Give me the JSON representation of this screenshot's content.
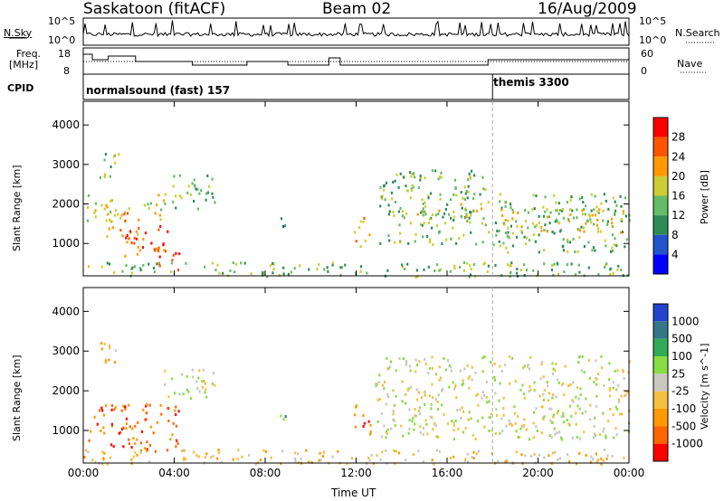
{
  "header": {
    "station": "Saskatoon (fitACF)",
    "beam": "Beam 02",
    "date": "16/Aug/2009"
  },
  "summary_panels": {
    "nsky_label": "N.Sky",
    "nsky_ticks": [
      "10^5",
      "10^0"
    ],
    "nsearch_label": "N.Search",
    "nsearch_ticks": [
      "10^5",
      "10^0"
    ],
    "freq_label_1": "Freq.",
    "freq_label_2": "[MHz]",
    "freq_ticks": [
      "18",
      "8"
    ],
    "nave_label": "Nave",
    "nave_ticks": [
      "60",
      "0"
    ],
    "cpid_label": "CPID",
    "cpid_segments": [
      {
        "label": "normalsound (fast) 157",
        "start_hour": 0
      },
      {
        "label": "themis 3300",
        "start_hour": 18
      }
    ]
  },
  "chart_data": [
    {
      "type": "heatmap",
      "name": "power",
      "xlabel": "",
      "ylabel": "Slant Range [km]",
      "x_ticks": [
        "00:00",
        "04:00",
        "08:00",
        "12:00",
        "16:00",
        "20:00",
        "00:00"
      ],
      "xlim_hours": [
        0,
        24
      ],
      "ylim_km": [
        180,
        4600
      ],
      "y_ticks": [
        1000,
        2000,
        3000,
        4000
      ],
      "colorbar": {
        "label": "Power [dB]",
        "ticks": [
          "4",
          "8",
          "12",
          "16",
          "20",
          "24",
          "28"
        ],
        "colors": [
          "#0000ff",
          "#2255cc",
          "#2e8b57",
          "#66bb66",
          "#cccc33",
          "#ff9900",
          "#ff5500",
          "#ff0000"
        ]
      },
      "regions": [
        {
          "t": [
            0.05,
            1.3
          ],
          "r": [
            1550,
            2300
          ],
          "level": 4
        },
        {
          "t": [
            0.7,
            1.6
          ],
          "r": [
            2700,
            3400
          ],
          "level": 3
        },
        {
          "t": [
            0.8,
            2.5
          ],
          "r": [
            1200,
            2000
          ],
          "level": 5
        },
        {
          "t": [
            1.8,
            3.8
          ],
          "r": [
            700,
            1500
          ],
          "level": 6
        },
        {
          "t": [
            3.2,
            4.3
          ],
          "r": [
            350,
            1000
          ],
          "level": 7
        },
        {
          "t": [
            2.5,
            3.6
          ],
          "r": [
            1600,
            2300
          ],
          "level": 4
        },
        {
          "t": [
            3.8,
            5.8
          ],
          "r": [
            1900,
            2800
          ],
          "level": 3
        },
        {
          "t": [
            8.4,
            8.9
          ],
          "r": [
            1300,
            1700
          ],
          "level": 2
        },
        {
          "t": [
            11.9,
            12.6
          ],
          "r": [
            900,
            1700
          ],
          "level": 5
        },
        {
          "t": [
            13.0,
            17.8
          ],
          "r": [
            1000,
            2900
          ],
          "level": 3
        },
        {
          "t": [
            14.5,
            17.5
          ],
          "r": [
            1700,
            2200
          ],
          "level": 4
        },
        {
          "t": [
            18.0,
            24.0
          ],
          "r": [
            800,
            2300
          ],
          "level": 3
        },
        {
          "t": [
            18.2,
            24.0
          ],
          "r": [
            1300,
            1900
          ],
          "level": 4
        },
        {
          "t": [
            0.0,
            24.0
          ],
          "r": [
            180,
            550
          ],
          "level": 3
        }
      ]
    },
    {
      "type": "heatmap",
      "name": "velocity",
      "xlabel": "Time UT",
      "ylabel": "Slant Range [km]",
      "x_ticks": [
        "00:00",
        "04:00",
        "08:00",
        "12:00",
        "16:00",
        "20:00",
        "00:00"
      ],
      "xlim_hours": [
        0,
        24
      ],
      "ylim_km": [
        180,
        4600
      ],
      "y_ticks": [
        1000,
        2000,
        3000,
        4000
      ],
      "colorbar": {
        "label": "Velocity [m s^-1]",
        "ticks": [
          "1000",
          "500",
          "100",
          "25",
          "-25",
          "-100",
          "-500",
          "-1000"
        ],
        "colors": [
          "#2244cc",
          "#337788",
          "#33aa55",
          "#88dd44",
          "#c8c8c0",
          "#f5c040",
          "#ff9900",
          "#ff6600",
          "#ff0000"
        ]
      },
      "regions": [
        {
          "t": [
            0.2,
            4.2
          ],
          "r": [
            500,
            1700
          ],
          "level": 7
        },
        {
          "t": [
            0.6,
            1.6
          ],
          "r": [
            2700,
            3300
          ],
          "level": 5
        },
        {
          "t": [
            3.5,
            5.8
          ],
          "r": [
            1800,
            2600
          ],
          "level": 4
        },
        {
          "t": [
            8.4,
            8.9
          ],
          "r": [
            1300,
            1700
          ],
          "level": 2
        },
        {
          "t": [
            11.9,
            12.7
          ],
          "r": [
            900,
            1700
          ],
          "level": 7
        },
        {
          "t": [
            12.8,
            24.0
          ],
          "r": [
            800,
            2900
          ],
          "level": 4
        },
        {
          "t": [
            0.0,
            24.0
          ],
          "r": [
            180,
            550
          ],
          "level": 5
        }
      ]
    }
  ]
}
